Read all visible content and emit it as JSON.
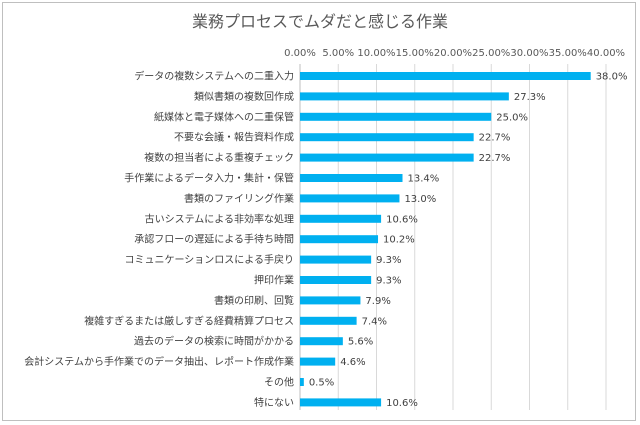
{
  "chart_data": {
    "type": "bar",
    "orientation": "horizontal",
    "title": "業務プロセスでムダだと感じる作業",
    "xlim": [
      0,
      40
    ],
    "xticks": [
      "0.00%",
      "5.00%",
      "10.00%",
      "15.00%",
      "20.00%",
      "25.00%",
      "30.00%",
      "35.00%",
      "40.00%"
    ],
    "axis_position": "top",
    "grid": true,
    "bar_color": "#00b0f0",
    "categories": [
      "データの複数システムへの二重入力",
      "類似書類の複数回作成",
      "紙媒体と電子媒体への二重保管",
      "不要な会議・報告資料作成",
      "複数の担当者による重複チェック",
      "手作業によるデータ入力・集計・保管",
      "書類のファイリング作業",
      "古いシステムによる非効率な処理",
      "承認フローの遅延による手待ち時間",
      "コミュニケーションロスによる手戻り",
      "押印作業",
      "書類の印刷、回覧",
      "複雑すぎるまたは厳しすぎる経費精算プロセス",
      "過去のデータの検索に時間がかかる",
      "会計システムから手作業でのデータ抽出、レポート作成作業",
      "その他",
      "特にない"
    ],
    "values": [
      38.0,
      27.3,
      25.0,
      22.7,
      22.7,
      13.4,
      13.0,
      10.6,
      10.2,
      9.3,
      9.3,
      7.9,
      7.4,
      5.6,
      4.6,
      0.5,
      10.6
    ],
    "data_labels": [
      "38.0%",
      "27.3%",
      "25.0%",
      "22.7%",
      "22.7%",
      "13.4%",
      "13.0%",
      "10.6%",
      "10.2%",
      "9.3%",
      "9.3%",
      "7.9%",
      "7.4%",
      "5.6%",
      "4.6%",
      "0.5%",
      "10.6%"
    ]
  }
}
